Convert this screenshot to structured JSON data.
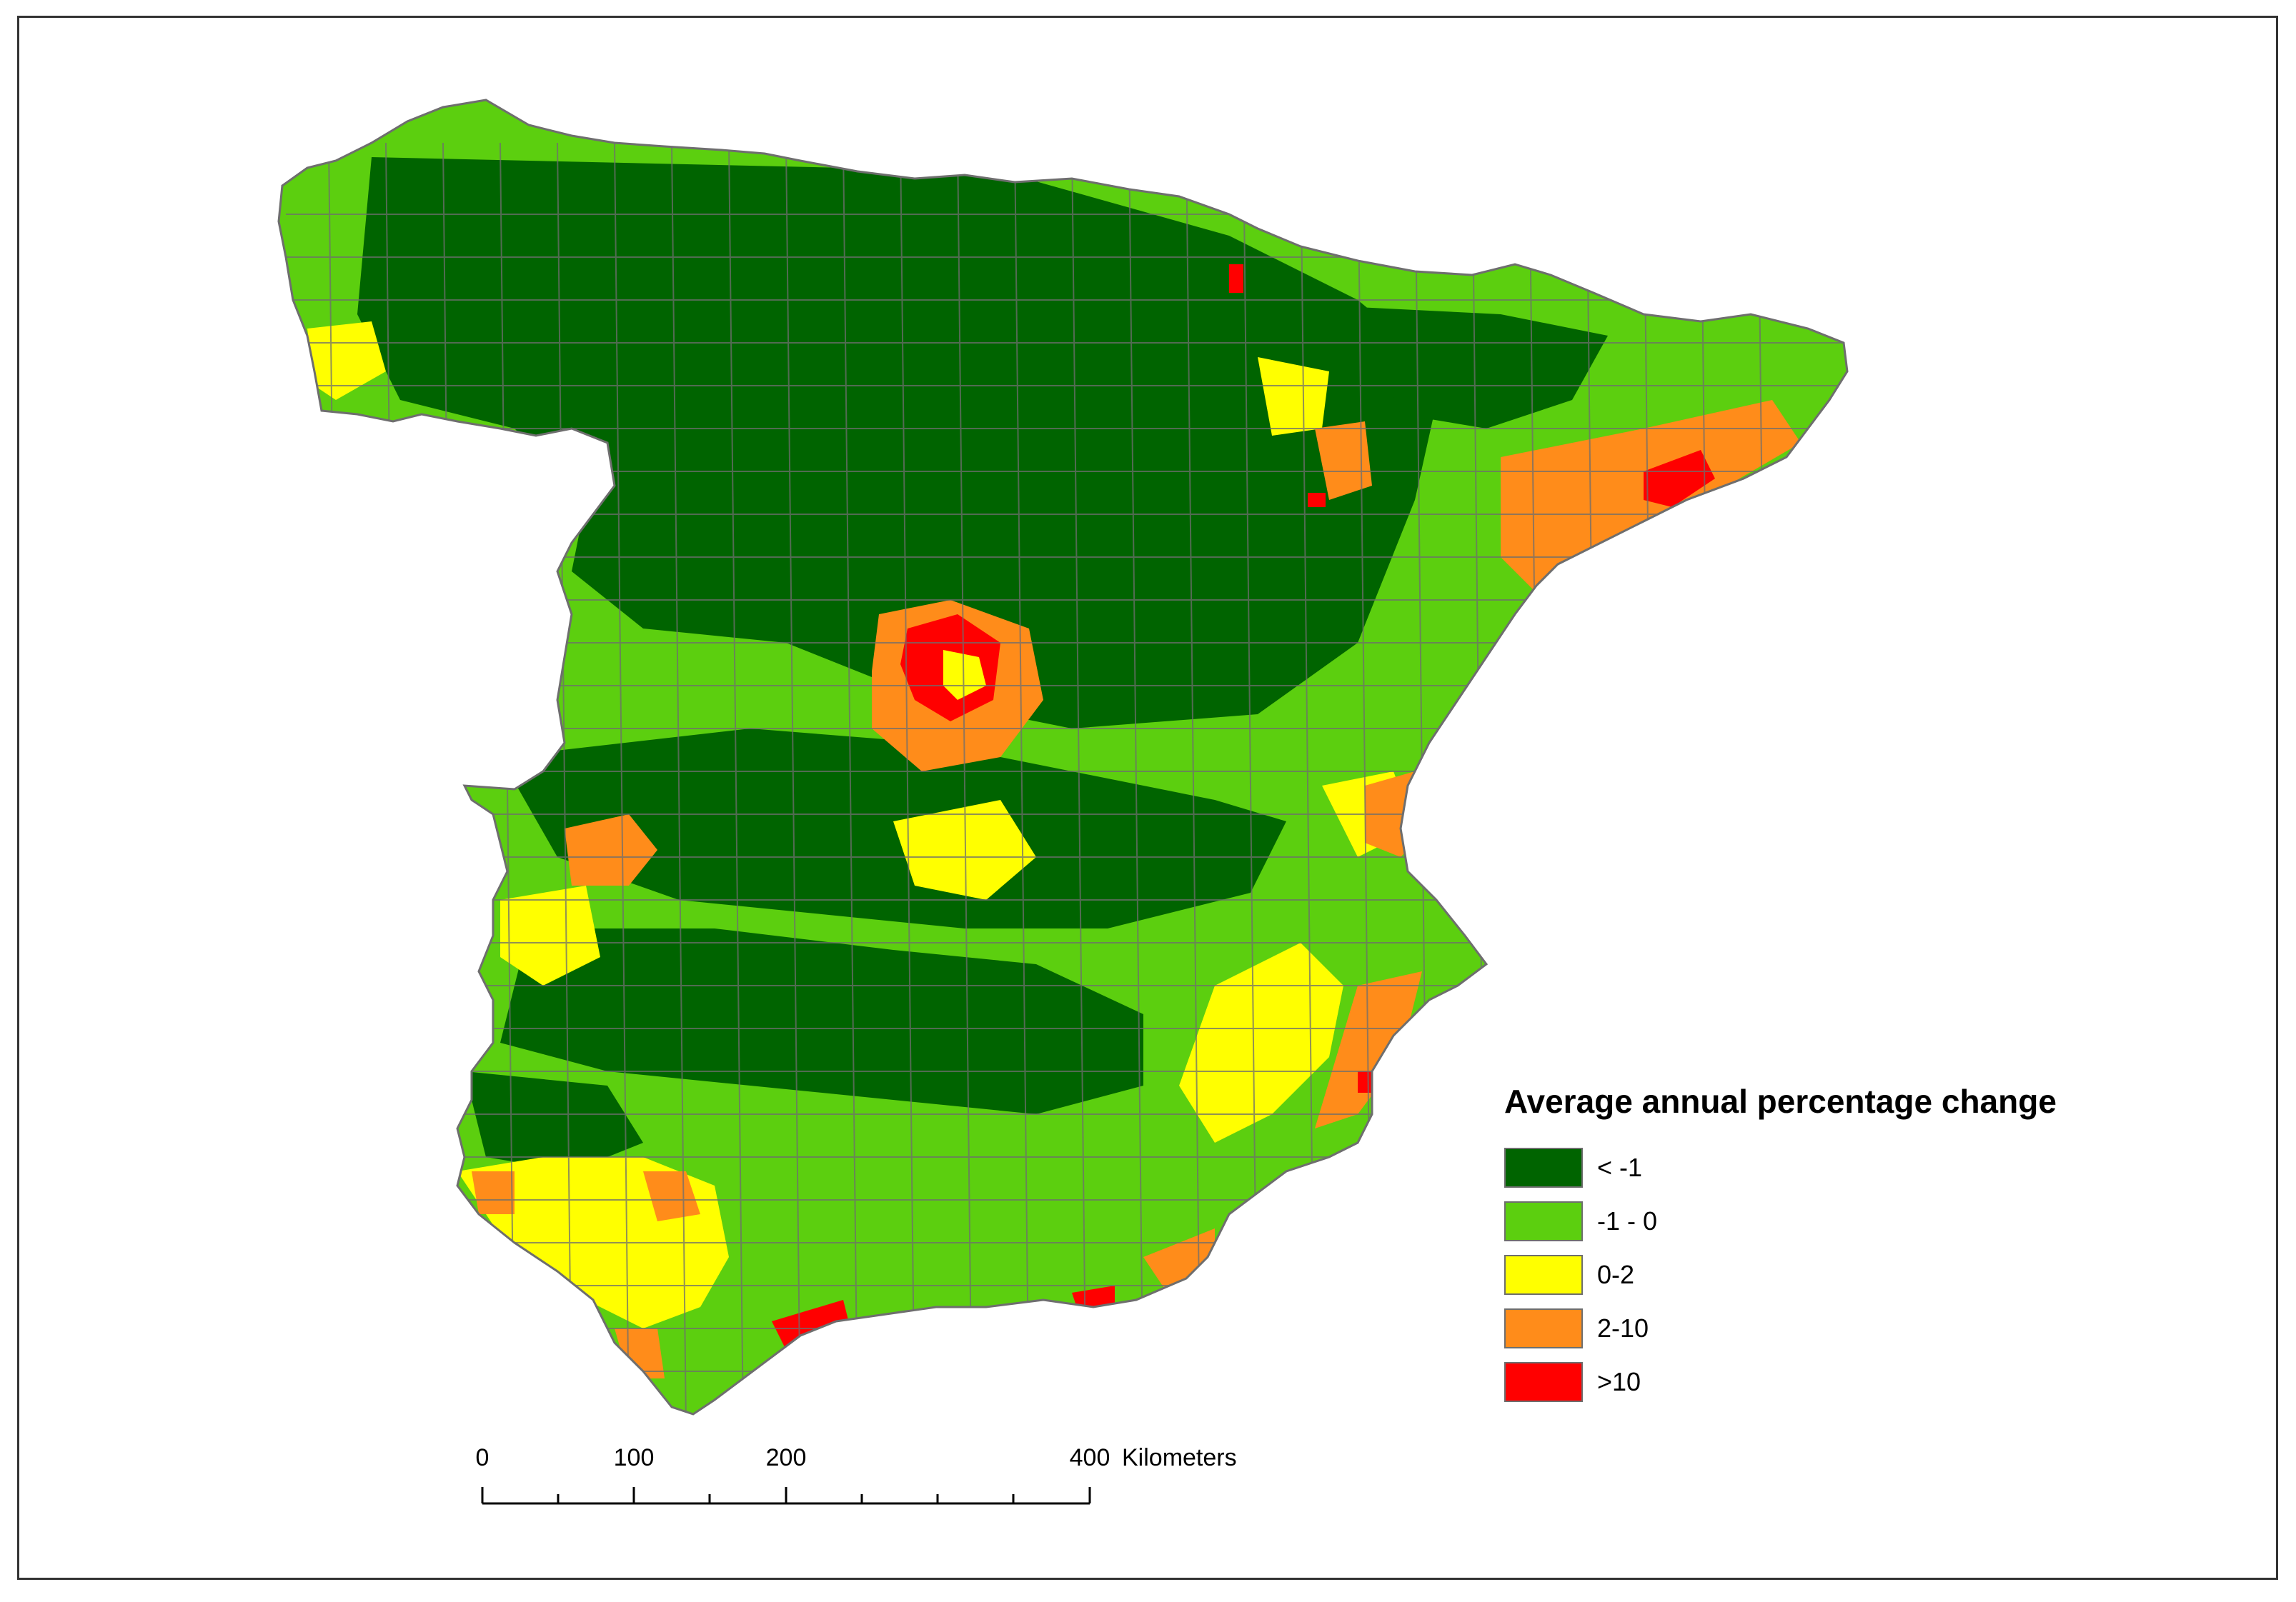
{
  "legend": {
    "title": "Average annual percentage change",
    "items": [
      {
        "label": "< -1",
        "color": "#006400"
      },
      {
        "label": "-1 - 0",
        "color": "#5ccf0f"
      },
      {
        "label": "0-2",
        "color": "#ffff00"
      },
      {
        "label": "2-10",
        "color": "#ff8c1a"
      },
      {
        "label": ">10",
        "color": "#ff0000"
      }
    ]
  },
  "scalebar": {
    "labels": [
      "0",
      "100",
      "200",
      "400"
    ],
    "unit": "Kilometers"
  },
  "colors": {
    "border_lines": "#6e6e6e",
    "frame": "#333333"
  }
}
